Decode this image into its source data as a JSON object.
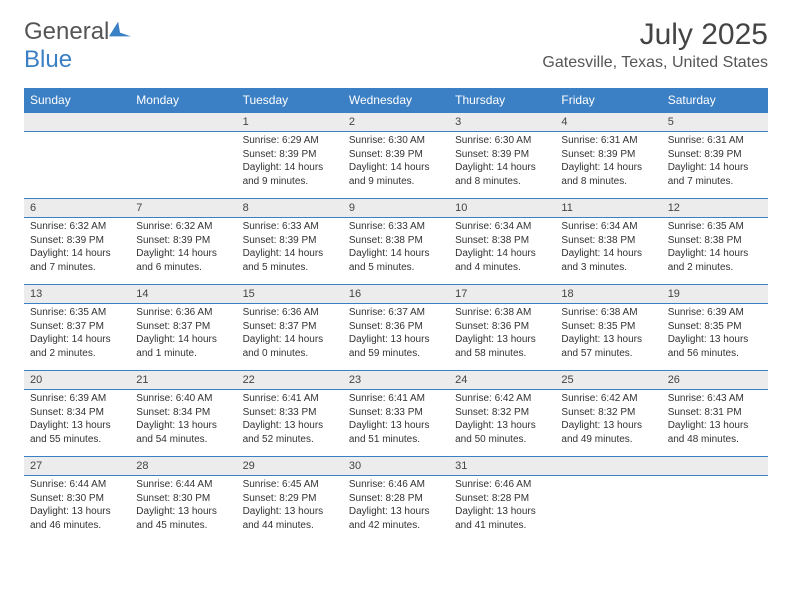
{
  "brand": {
    "name_a": "General",
    "name_b": "Blue"
  },
  "title": "July 2025",
  "location": "Gatesville, Texas, United States",
  "colors": {
    "header_bg": "#3b7fc4",
    "daynum_bg": "#ececec",
    "border": "#3b7fc4",
    "text": "#333333",
    "title": "#444444"
  },
  "day_headers": [
    "Sunday",
    "Monday",
    "Tuesday",
    "Wednesday",
    "Thursday",
    "Friday",
    "Saturday"
  ],
  "weeks": [
    [
      null,
      null,
      {
        "n": "1",
        "sr": "Sunrise: 6:29 AM",
        "ss": "Sunset: 8:39 PM",
        "dl": "Daylight: 14 hours and 9 minutes."
      },
      {
        "n": "2",
        "sr": "Sunrise: 6:30 AM",
        "ss": "Sunset: 8:39 PM",
        "dl": "Daylight: 14 hours and 9 minutes."
      },
      {
        "n": "3",
        "sr": "Sunrise: 6:30 AM",
        "ss": "Sunset: 8:39 PM",
        "dl": "Daylight: 14 hours and 8 minutes."
      },
      {
        "n": "4",
        "sr": "Sunrise: 6:31 AM",
        "ss": "Sunset: 8:39 PM",
        "dl": "Daylight: 14 hours and 8 minutes."
      },
      {
        "n": "5",
        "sr": "Sunrise: 6:31 AM",
        "ss": "Sunset: 8:39 PM",
        "dl": "Daylight: 14 hours and 7 minutes."
      }
    ],
    [
      {
        "n": "6",
        "sr": "Sunrise: 6:32 AM",
        "ss": "Sunset: 8:39 PM",
        "dl": "Daylight: 14 hours and 7 minutes."
      },
      {
        "n": "7",
        "sr": "Sunrise: 6:32 AM",
        "ss": "Sunset: 8:39 PM",
        "dl": "Daylight: 14 hours and 6 minutes."
      },
      {
        "n": "8",
        "sr": "Sunrise: 6:33 AM",
        "ss": "Sunset: 8:39 PM",
        "dl": "Daylight: 14 hours and 5 minutes."
      },
      {
        "n": "9",
        "sr": "Sunrise: 6:33 AM",
        "ss": "Sunset: 8:38 PM",
        "dl": "Daylight: 14 hours and 5 minutes."
      },
      {
        "n": "10",
        "sr": "Sunrise: 6:34 AM",
        "ss": "Sunset: 8:38 PM",
        "dl": "Daylight: 14 hours and 4 minutes."
      },
      {
        "n": "11",
        "sr": "Sunrise: 6:34 AM",
        "ss": "Sunset: 8:38 PM",
        "dl": "Daylight: 14 hours and 3 minutes."
      },
      {
        "n": "12",
        "sr": "Sunrise: 6:35 AM",
        "ss": "Sunset: 8:38 PM",
        "dl": "Daylight: 14 hours and 2 minutes."
      }
    ],
    [
      {
        "n": "13",
        "sr": "Sunrise: 6:35 AM",
        "ss": "Sunset: 8:37 PM",
        "dl": "Daylight: 14 hours and 2 minutes."
      },
      {
        "n": "14",
        "sr": "Sunrise: 6:36 AM",
        "ss": "Sunset: 8:37 PM",
        "dl": "Daylight: 14 hours and 1 minute."
      },
      {
        "n": "15",
        "sr": "Sunrise: 6:36 AM",
        "ss": "Sunset: 8:37 PM",
        "dl": "Daylight: 14 hours and 0 minutes."
      },
      {
        "n": "16",
        "sr": "Sunrise: 6:37 AM",
        "ss": "Sunset: 8:36 PM",
        "dl": "Daylight: 13 hours and 59 minutes."
      },
      {
        "n": "17",
        "sr": "Sunrise: 6:38 AM",
        "ss": "Sunset: 8:36 PM",
        "dl": "Daylight: 13 hours and 58 minutes."
      },
      {
        "n": "18",
        "sr": "Sunrise: 6:38 AM",
        "ss": "Sunset: 8:35 PM",
        "dl": "Daylight: 13 hours and 57 minutes."
      },
      {
        "n": "19",
        "sr": "Sunrise: 6:39 AM",
        "ss": "Sunset: 8:35 PM",
        "dl": "Daylight: 13 hours and 56 minutes."
      }
    ],
    [
      {
        "n": "20",
        "sr": "Sunrise: 6:39 AM",
        "ss": "Sunset: 8:34 PM",
        "dl": "Daylight: 13 hours and 55 minutes."
      },
      {
        "n": "21",
        "sr": "Sunrise: 6:40 AM",
        "ss": "Sunset: 8:34 PM",
        "dl": "Daylight: 13 hours and 54 minutes."
      },
      {
        "n": "22",
        "sr": "Sunrise: 6:41 AM",
        "ss": "Sunset: 8:33 PM",
        "dl": "Daylight: 13 hours and 52 minutes."
      },
      {
        "n": "23",
        "sr": "Sunrise: 6:41 AM",
        "ss": "Sunset: 8:33 PM",
        "dl": "Daylight: 13 hours and 51 minutes."
      },
      {
        "n": "24",
        "sr": "Sunrise: 6:42 AM",
        "ss": "Sunset: 8:32 PM",
        "dl": "Daylight: 13 hours and 50 minutes."
      },
      {
        "n": "25",
        "sr": "Sunrise: 6:42 AM",
        "ss": "Sunset: 8:32 PM",
        "dl": "Daylight: 13 hours and 49 minutes."
      },
      {
        "n": "26",
        "sr": "Sunrise: 6:43 AM",
        "ss": "Sunset: 8:31 PM",
        "dl": "Daylight: 13 hours and 48 minutes."
      }
    ],
    [
      {
        "n": "27",
        "sr": "Sunrise: 6:44 AM",
        "ss": "Sunset: 8:30 PM",
        "dl": "Daylight: 13 hours and 46 minutes."
      },
      {
        "n": "28",
        "sr": "Sunrise: 6:44 AM",
        "ss": "Sunset: 8:30 PM",
        "dl": "Daylight: 13 hours and 45 minutes."
      },
      {
        "n": "29",
        "sr": "Sunrise: 6:45 AM",
        "ss": "Sunset: 8:29 PM",
        "dl": "Daylight: 13 hours and 44 minutes."
      },
      {
        "n": "30",
        "sr": "Sunrise: 6:46 AM",
        "ss": "Sunset: 8:28 PM",
        "dl": "Daylight: 13 hours and 42 minutes."
      },
      {
        "n": "31",
        "sr": "Sunrise: 6:46 AM",
        "ss": "Sunset: 8:28 PM",
        "dl": "Daylight: 13 hours and 41 minutes."
      },
      null,
      null
    ]
  ]
}
